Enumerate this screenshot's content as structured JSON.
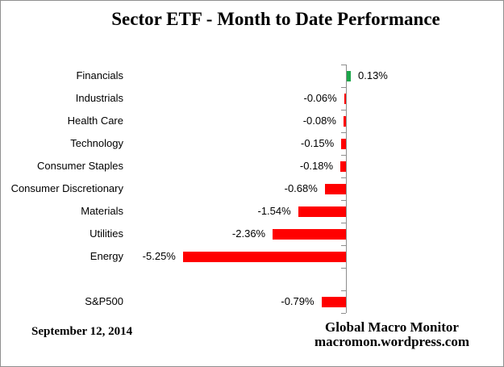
{
  "chart_data": {
    "type": "bar",
    "orientation": "horizontal",
    "title": "Sector ETF - Month to Date Performance",
    "unit": "%",
    "categories": [
      "Financials",
      "Industrials",
      "Health Care",
      "Technology",
      "Consumer Staples",
      "Consumer Discretionary",
      "Materials",
      "Utilities",
      "Energy",
      "",
      "S&P500"
    ],
    "values": [
      0.13,
      -0.06,
      -0.08,
      -0.15,
      -0.18,
      -0.68,
      -1.54,
      -2.36,
      -5.25,
      null,
      -0.79
    ],
    "value_labels": [
      "0.13%",
      "-0.06%",
      "-0.08%",
      "-0.15%",
      "-0.18%",
      "-0.68%",
      "-1.54%",
      "-2.36%",
      "-5.25%",
      "",
      "-0.79%"
    ],
    "xlabel": "",
    "ylabel": "",
    "grid": false,
    "legend": false,
    "baseline_value": 0,
    "colors": {
      "positive": "#1CA64A",
      "negative": "#FF0000",
      "axis": "#8E8E8E",
      "text": "#000000",
      "background": "#FFFFFF"
    }
  },
  "footer": {
    "date": "September 12, 2014",
    "credit_line1": "Global Macro Monitor",
    "credit_line2": "macromon.wordpress.com"
  }
}
